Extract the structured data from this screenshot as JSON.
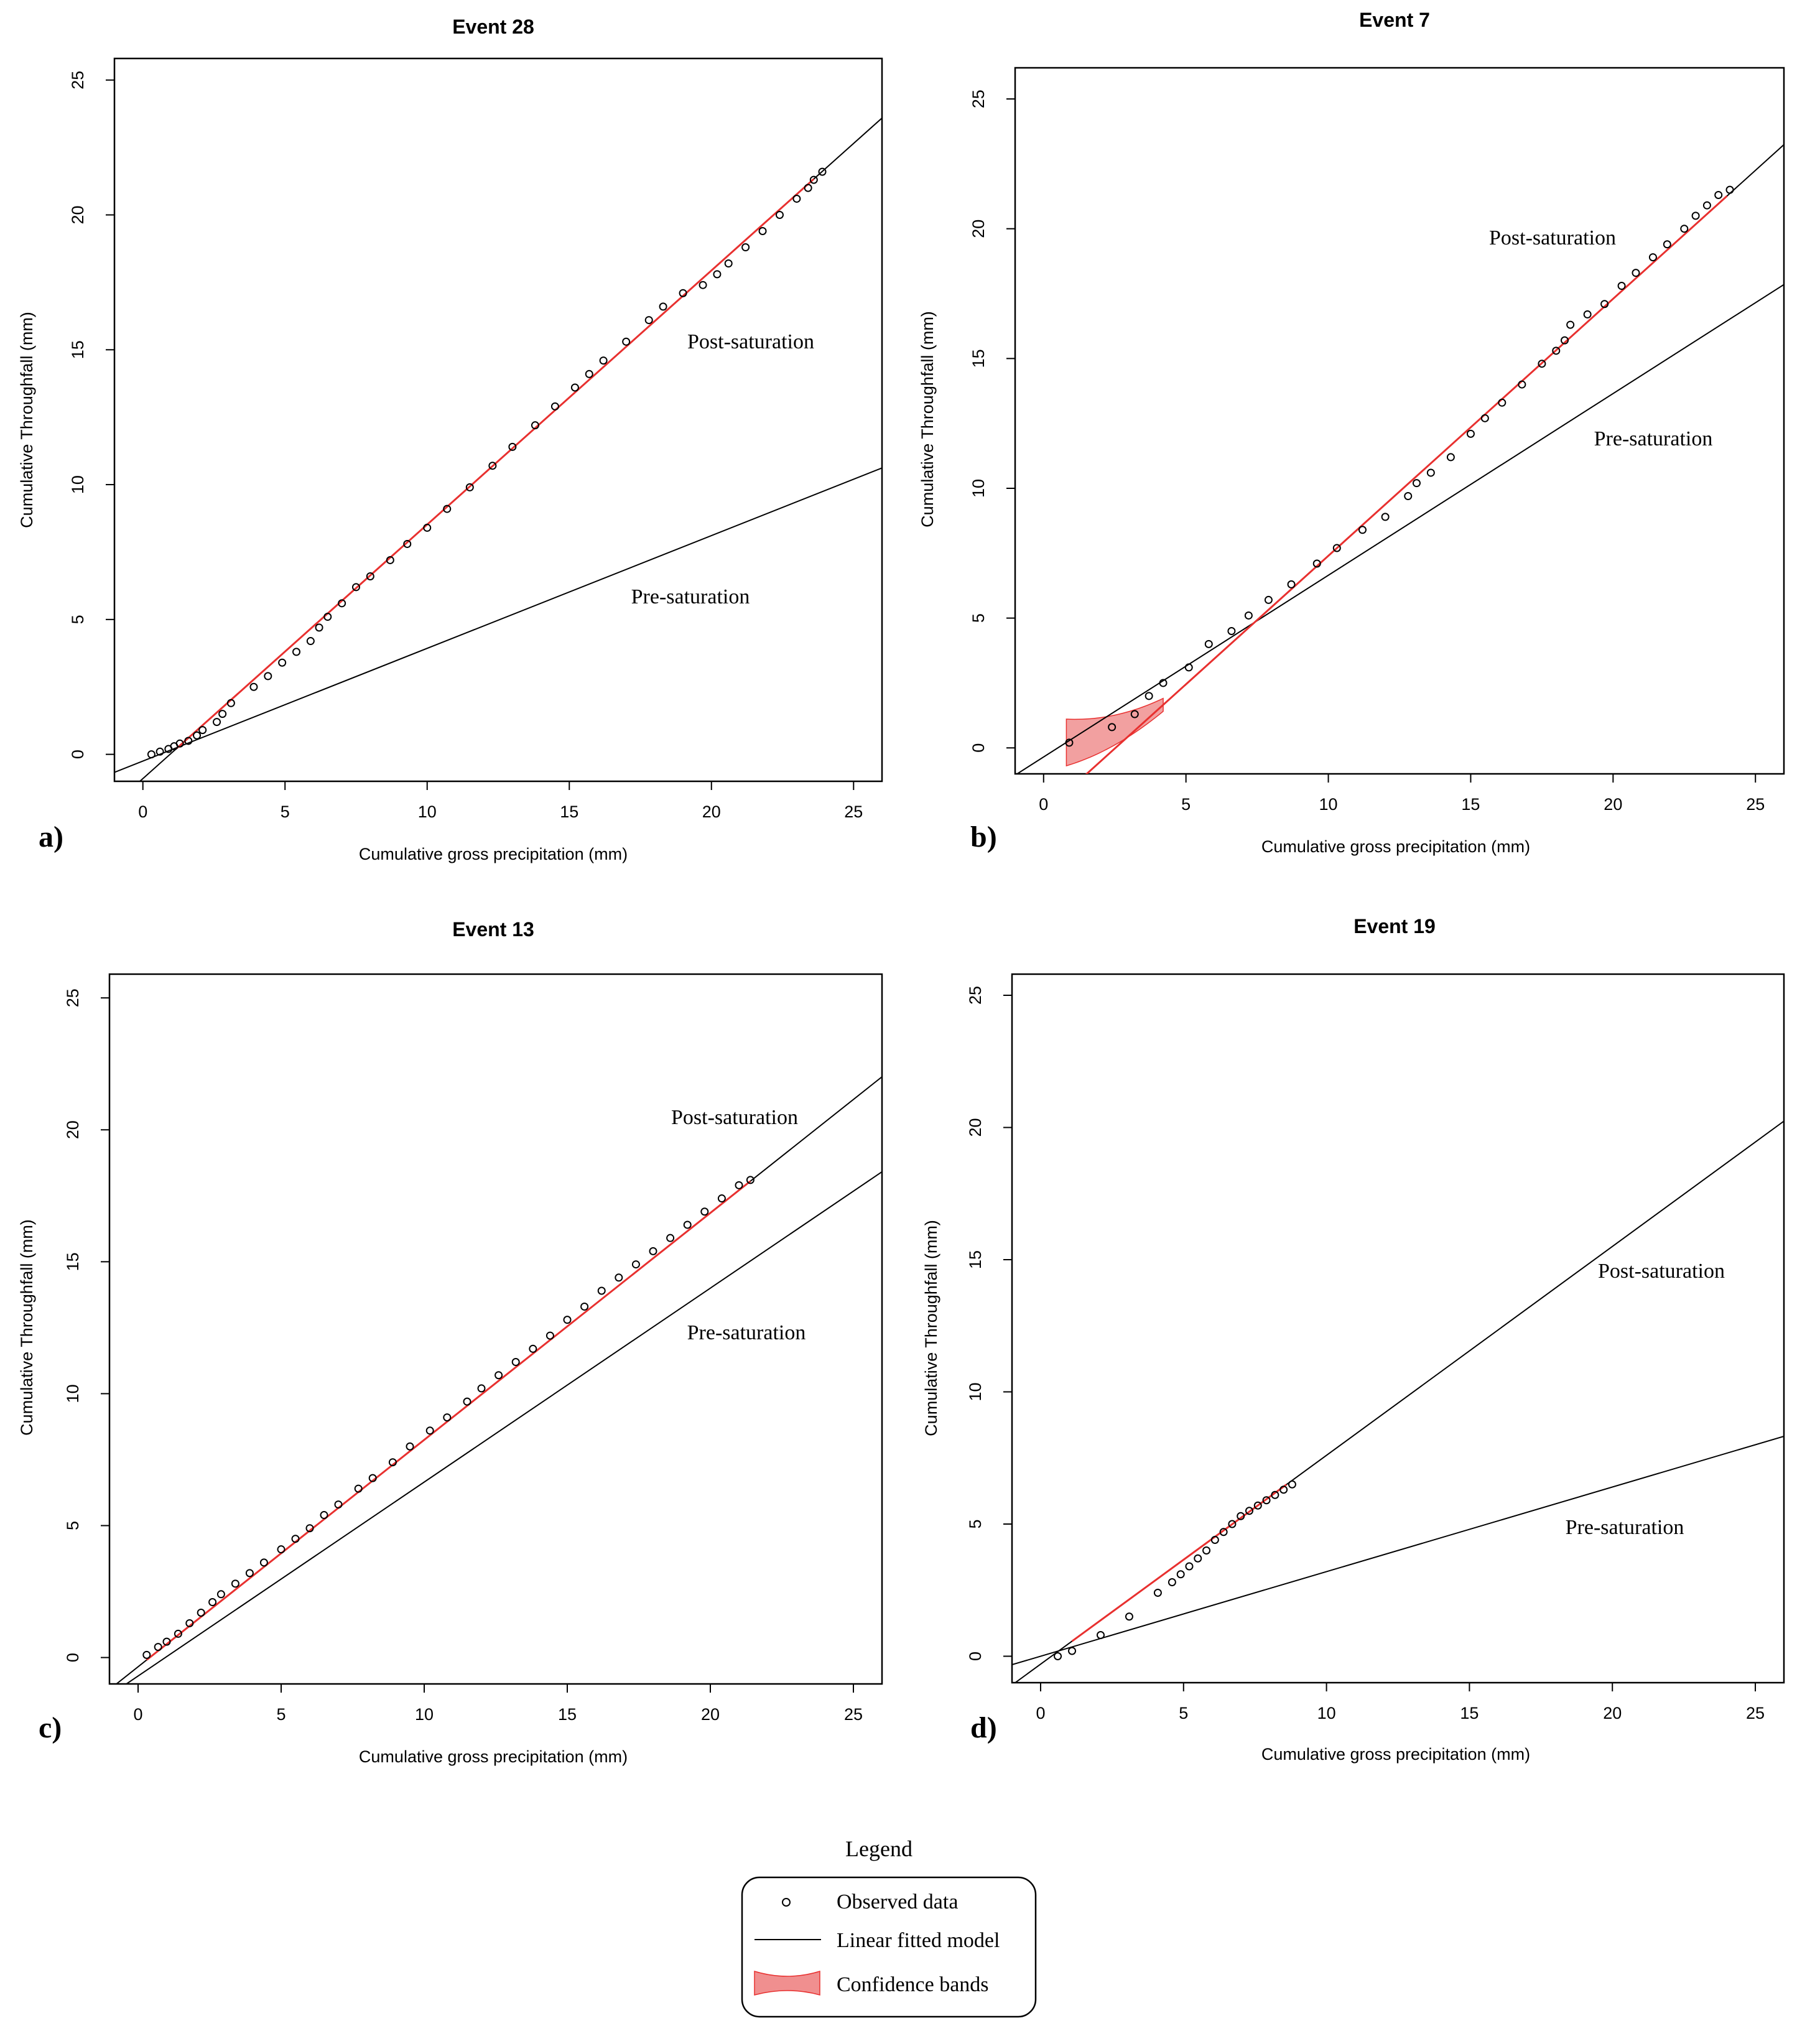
{
  "chart_data": [
    {
      "type": "scatter",
      "panel_label": "a)",
      "title": "Event 28",
      "xlabel": "Cumulative gross precipitation (mm)",
      "ylabel": "Cumulative Throughfall (mm)",
      "xlim": [
        -1,
        26
      ],
      "ylim": [
        -1,
        25.8
      ],
      "xticks": [
        0,
        5,
        10,
        15,
        20,
        25
      ],
      "yticks": [
        0,
        5,
        10,
        15,
        20,
        25
      ],
      "observed": {
        "x": [
          0.3,
          0.6,
          0.9,
          1.1,
          1.3,
          1.6,
          1.9,
          2.1,
          2.6,
          2.8,
          3.1,
          3.9,
          4.4,
          4.9,
          5.4,
          5.9,
          6.2,
          6.5,
          7.0,
          7.5,
          8.0,
          8.7,
          9.3,
          10.0,
          10.7,
          11.5,
          12.3,
          13.0,
          13.8,
          14.5,
          15.2,
          15.7,
          16.2,
          17.0,
          17.8,
          18.3,
          19.0,
          19.7,
          20.2,
          20.6,
          21.2,
          21.8,
          22.4,
          23.0,
          23.4,
          23.6,
          23.9
        ],
        "y": [
          0.0,
          0.1,
          0.2,
          0.3,
          0.4,
          0.5,
          0.7,
          0.9,
          1.2,
          1.5,
          1.9,
          2.5,
          2.9,
          3.4,
          3.8,
          4.2,
          4.7,
          5.1,
          5.6,
          6.2,
          6.6,
          7.2,
          7.8,
          8.4,
          9.1,
          9.9,
          10.7,
          11.4,
          12.2,
          12.9,
          13.6,
          14.1,
          14.6,
          15.3,
          16.1,
          16.6,
          17.1,
          17.4,
          17.8,
          18.2,
          18.8,
          19.4,
          20.0,
          20.6,
          21.0,
          21.3,
          21.6
        ]
      },
      "fits": [
        {
          "label": "Post-saturation",
          "slope": 0.942,
          "intercept": -0.9
        },
        {
          "label": "Pre-saturation",
          "slope": 0.418,
          "intercept": -0.25
        }
      ],
      "fit_range": [
        1.2,
        23.6
      ],
      "confidence_band": null
    },
    {
      "type": "scatter",
      "panel_label": "b)",
      "title": "Event 7",
      "xlabel": "Cumulative gross precipitation (mm)",
      "ylabel": "Cumulative Throughfall (mm)",
      "xlim": [
        -1,
        26
      ],
      "ylim": [
        -1,
        26.2
      ],
      "xticks": [
        0,
        5,
        10,
        15,
        20,
        25
      ],
      "yticks": [
        0,
        5,
        10,
        15,
        20,
        25
      ],
      "observed": {
        "x": [
          0.9,
          2.4,
          3.2,
          3.7,
          4.2,
          5.1,
          5.8,
          6.6,
          7.2,
          7.9,
          8.7,
          9.6,
          10.3,
          11.2,
          12.0,
          12.8,
          13.1,
          13.6,
          14.3,
          15.0,
          15.5,
          16.1,
          16.8,
          17.5,
          18.0,
          18.3,
          18.5,
          19.1,
          19.7,
          20.3,
          20.8,
          21.4,
          21.9,
          22.5,
          22.9,
          23.3,
          23.7,
          24.1
        ],
        "y": [
          0.2,
          0.8,
          1.3,
          2.0,
          2.5,
          3.1,
          4.0,
          4.5,
          5.1,
          5.7,
          6.3,
          7.1,
          7.7,
          8.4,
          8.9,
          9.7,
          10.2,
          10.6,
          11.2,
          12.1,
          12.7,
          13.3,
          14.0,
          14.8,
          15.3,
          15.7,
          16.3,
          16.7,
          17.1,
          17.8,
          18.3,
          18.9,
          19.4,
          20.0,
          20.5,
          20.9,
          21.3,
          21.5
        ]
      },
      "fits": [
        {
          "label": "Post-saturation",
          "slope": 0.99,
          "intercept": -2.5
        },
        {
          "label": "Pre-saturation",
          "slope": 0.7,
          "intercept": -0.35
        }
      ],
      "fit_range": [
        0.8,
        24.0
      ],
      "confidence_band": {
        "x_from": 0.8,
        "x_to": 4.2,
        "half_width_start": 0.9,
        "half_width_end": 0.25
      }
    },
    {
      "type": "scatter",
      "panel_label": "c)",
      "title": "Event 13",
      "xlabel": "Cumulative gross precipitation (mm)",
      "ylabel": "Cumulative Throughfall (mm)",
      "xlim": [
        -1,
        26
      ],
      "ylim": [
        -1,
        25.9
      ],
      "xticks": [
        0,
        5,
        10,
        15,
        20,
        25
      ],
      "yticks": [
        0,
        5,
        10,
        15,
        20,
        25
      ],
      "observed": {
        "x": [
          0.3,
          0.7,
          1.0,
          1.4,
          1.8,
          2.2,
          2.6,
          2.9,
          3.4,
          3.9,
          4.4,
          5.0,
          5.5,
          6.0,
          6.5,
          7.0,
          7.7,
          8.2,
          8.9,
          9.5,
          10.2,
          10.8,
          11.5,
          12.0,
          12.6,
          13.2,
          13.8,
          14.4,
          15.0,
          15.6,
          16.2,
          16.8,
          17.4,
          18.0,
          18.6,
          19.2,
          19.8,
          20.4,
          21.0,
          21.4
        ],
        "y": [
          0.1,
          0.4,
          0.6,
          0.9,
          1.3,
          1.7,
          2.1,
          2.4,
          2.8,
          3.2,
          3.6,
          4.1,
          4.5,
          4.9,
          5.4,
          5.8,
          6.4,
          6.8,
          7.4,
          8.0,
          8.6,
          9.1,
          9.7,
          10.2,
          10.7,
          11.2,
          11.7,
          12.2,
          12.8,
          13.3,
          13.9,
          14.4,
          14.9,
          15.4,
          15.9,
          16.4,
          16.9,
          17.4,
          17.9,
          18.1
        ]
      },
      "fits": [
        {
          "label": "Post-saturation",
          "slope": 0.86,
          "intercept": -0.35
        },
        {
          "label": "Pre-saturation",
          "slope": 0.735,
          "intercept": -0.7
        }
      ],
      "fit_range": [
        0.3,
        21.4
      ],
      "confidence_band": null
    },
    {
      "type": "scatter",
      "panel_label": "d)",
      "title": "Event 19",
      "xlabel": "Cumulative gross precipitation (mm)",
      "ylabel": "Cumulative Throughfall (mm)",
      "xlim": [
        -1,
        26
      ],
      "ylim": [
        -1,
        25.8
      ],
      "xticks": [
        0,
        5,
        10,
        15,
        20,
        25
      ],
      "yticks": [
        0,
        5,
        10,
        15,
        20,
        25
      ],
      "observed": {
        "x": [
          0.6,
          1.1,
          2.1,
          3.1,
          4.1,
          4.6,
          4.9,
          5.2,
          5.5,
          5.8,
          6.1,
          6.4,
          6.7,
          7.0,
          7.3,
          7.6,
          7.9,
          8.2,
          8.5,
          8.8
        ],
        "y": [
          0.0,
          0.2,
          0.8,
          1.5,
          2.4,
          2.8,
          3.1,
          3.4,
          3.7,
          4.0,
          4.4,
          4.7,
          5.0,
          5.3,
          5.5,
          5.7,
          5.9,
          6.1,
          6.3,
          6.5
        ]
      },
      "fits": [
        {
          "label": "Post-saturation",
          "slope": 0.79,
          "intercept": -0.3
        },
        {
          "label": "Pre-saturation",
          "slope": 0.32,
          "intercept": 0.0
        }
      ],
      "fit_range": [
        1.1,
        8.6
      ],
      "confidence_band": null
    }
  ],
  "legend": {
    "title": "Legend",
    "items": [
      {
        "key": "observed",
        "label": "Observed data"
      },
      {
        "key": "fit",
        "label": "Linear fitted model"
      },
      {
        "key": "band",
        "label": "Confidence bands"
      }
    ]
  },
  "colors": {
    "fit_red": "#e8302f",
    "band_fill": "#f08f8f",
    "ink": "#000000"
  }
}
